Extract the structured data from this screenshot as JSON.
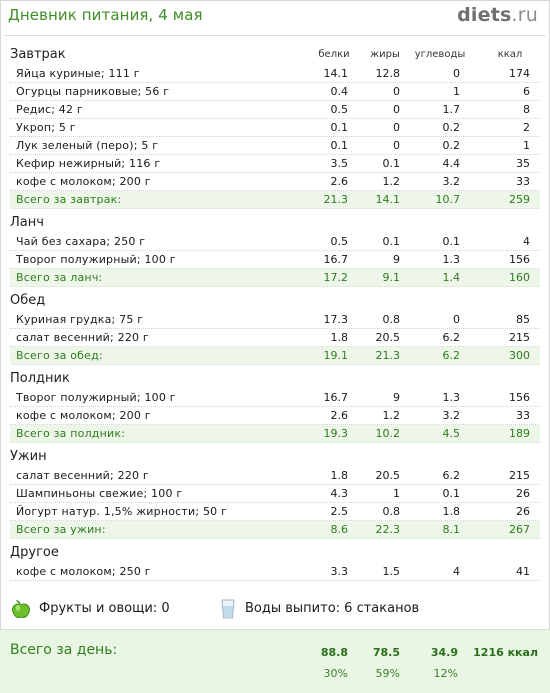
{
  "header": {
    "title": "Дневник питания, 4 мая",
    "brand_main": "diets",
    "brand_tld": ".ru"
  },
  "columns": {
    "protein": "белки",
    "fat": "жиры",
    "carbs": "углеводы",
    "kcal": "ккал"
  },
  "breakfast": {
    "title": "Завтрак",
    "items": [
      {
        "name": "Яйца куриные; 111 г",
        "protein": "14.1",
        "fat": "12.8",
        "carbs": "0",
        "kcal": "174"
      },
      {
        "name": "Огурцы парниковые; 56 г",
        "protein": "0.4",
        "fat": "0",
        "carbs": "1",
        "kcal": "6"
      },
      {
        "name": "Редис; 42 г",
        "protein": "0.5",
        "fat": "0",
        "carbs": "1.7",
        "kcal": "8"
      },
      {
        "name": "Укроп; 5 г",
        "protein": "0.1",
        "fat": "0",
        "carbs": "0.2",
        "kcal": "2"
      },
      {
        "name": "Лук зеленый (перо); 5 г",
        "protein": "0.1",
        "fat": "0",
        "carbs": "0.2",
        "kcal": "1"
      },
      {
        "name": "Кефир нежирный; 116 г",
        "protein": "3.5",
        "fat": "0.1",
        "carbs": "4.4",
        "kcal": "35"
      },
      {
        "name": "кофе с молоком; 200 г",
        "protein": "2.6",
        "fat": "1.2",
        "carbs": "3.2",
        "kcal": "33"
      }
    ],
    "total": {
      "name": "Всего за завтрак:",
      "protein": "21.3",
      "fat": "14.1",
      "carbs": "10.7",
      "kcal": "259"
    }
  },
  "lunch": {
    "title": "Ланч",
    "items": [
      {
        "name": "Чай без сахара; 250 г",
        "protein": "0.5",
        "fat": "0.1",
        "carbs": "0.1",
        "kcal": "4"
      },
      {
        "name": "Творог полужирный; 100 г",
        "protein": "16.7",
        "fat": "9",
        "carbs": "1.3",
        "kcal": "156"
      }
    ],
    "total": {
      "name": "Всего за ланч:",
      "protein": "17.2",
      "fat": "9.1",
      "carbs": "1.4",
      "kcal": "160"
    }
  },
  "dinner": {
    "title": "Обед",
    "items": [
      {
        "name": "Куриная грудка; 75 г",
        "protein": "17.3",
        "fat": "0.8",
        "carbs": "0",
        "kcal": "85"
      },
      {
        "name": "салат весенний; 220 г",
        "protein": "1.8",
        "fat": "20.5",
        "carbs": "6.2",
        "kcal": "215"
      }
    ],
    "total": {
      "name": "Всего за обед:",
      "protein": "19.1",
      "fat": "21.3",
      "carbs": "6.2",
      "kcal": "300"
    }
  },
  "snack": {
    "title": "Полдник",
    "items": [
      {
        "name": "Творог полужирный; 100 г",
        "protein": "16.7",
        "fat": "9",
        "carbs": "1.3",
        "kcal": "156"
      },
      {
        "name": "кофе с молоком; 200 г",
        "protein": "2.6",
        "fat": "1.2",
        "carbs": "3.2",
        "kcal": "33"
      }
    ],
    "total": {
      "name": "Всего за полдник:",
      "protein": "19.3",
      "fat": "10.2",
      "carbs": "4.5",
      "kcal": "189"
    }
  },
  "supper": {
    "title": "Ужин",
    "items": [
      {
        "name": "салат весенний; 220 г",
        "protein": "1.8",
        "fat": "20.5",
        "carbs": "6.2",
        "kcal": "215"
      },
      {
        "name": "Шампиньоны свежие; 100 г",
        "protein": "4.3",
        "fat": "1",
        "carbs": "0.1",
        "kcal": "26"
      },
      {
        "name": "Йогурт натур. 1,5% жирности; 50 г",
        "protein": "2.5",
        "fat": "0.8",
        "carbs": "1.8",
        "kcal": "26"
      }
    ],
    "total": {
      "name": "Всего за ужин:",
      "protein": "8.6",
      "fat": "22.3",
      "carbs": "8.1",
      "kcal": "267"
    }
  },
  "other": {
    "title": "Другое",
    "items": [
      {
        "name": "кофе с молоком; 250 г",
        "protein": "3.3",
        "fat": "1.5",
        "carbs": "4",
        "kcal": "41"
      }
    ]
  },
  "extras": {
    "fruits": "Фрукты и овощи: 0",
    "water": "Воды выпито: 6 стаканов",
    "fruit_icon": "apple-icon",
    "water_icon": "glass-icon"
  },
  "day_total": {
    "label": "Всего за день:",
    "protein": "88.8",
    "fat": "78.5",
    "carbs": "34.9",
    "kcal": "1216 ккал",
    "protein_pct": "30%",
    "fat_pct": "59%",
    "carbs_pct": "12%"
  },
  "colors": {
    "accent_green": "#3e8f26",
    "total_row_bg": "#eef6ea",
    "day_box_bg": "#eaf6e4"
  }
}
